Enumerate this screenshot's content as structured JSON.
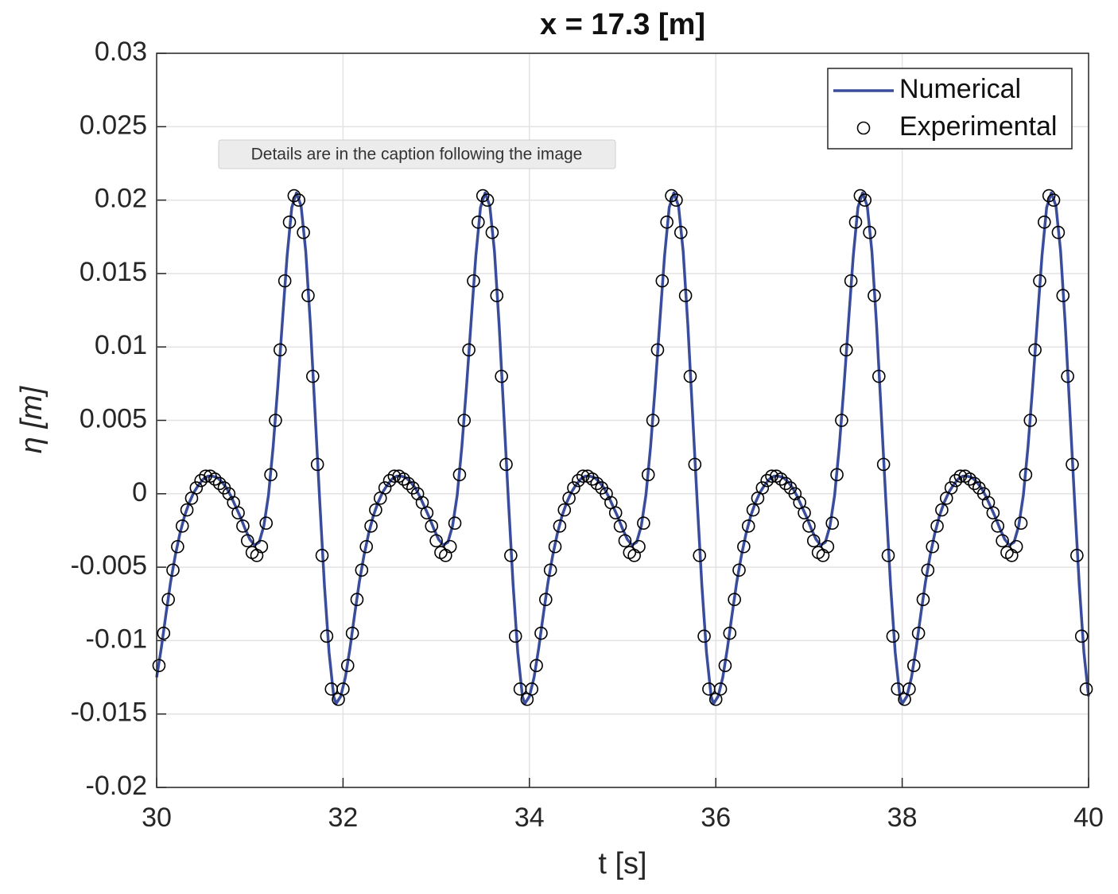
{
  "tooltip": "Details are in the caption following the image",
  "chart_data": {
    "type": "line",
    "title": "x = 17.3 [m]",
    "xlabel": "t [s]",
    "ylabel": "η [m]",
    "xlim": [
      30,
      40
    ],
    "xticks": [
      30,
      32,
      34,
      36,
      38,
      40
    ],
    "ylim": [
      -0.02,
      0.03
    ],
    "yticks": [
      -0.02,
      -0.015,
      -0.01,
      -0.005,
      0,
      0.005,
      0.01,
      0.015,
      0.02,
      0.025,
      0.03
    ],
    "grid": true,
    "legend": "upper right",
    "series": [
      {
        "name": "Numerical",
        "mode": "lines",
        "color": "#3a4d9c",
        "x": [
          30,
          30.05,
          30.1,
          30.15,
          30.2,
          30.25,
          30.3,
          30.35,
          30.4,
          30.45,
          30.5,
          30.55,
          30.6,
          30.65,
          30.7,
          30.75,
          30.8,
          30.85,
          30.9,
          30.95,
          31,
          31.05,
          31.1,
          31.15,
          31.2,
          31.25,
          31.3,
          31.35,
          31.4,
          31.45,
          31.5,
          31.55,
          31.6,
          31.65,
          31.7,
          31.75,
          31.8,
          31.85,
          31.9,
          31.925,
          31.975,
          32.025,
          32.075,
          32.125,
          32.175,
          32.225,
          32.275,
          32.325,
          32.375,
          32.425,
          32.475,
          32.525,
          32.575,
          32.625,
          32.675,
          32.725,
          32.775,
          32.825,
          32.875,
          32.925,
          32.975,
          33.025,
          33.075,
          33.125,
          33.175,
          33.225,
          33.275,
          33.325,
          33.375,
          33.425,
          33.475,
          33.525,
          33.575,
          33.625,
          33.675,
          33.725,
          33.775,
          33.825,
          33.875,
          33.925,
          33.95,
          34,
          34.05,
          34.1,
          34.15,
          34.2,
          34.25,
          34.3,
          34.35,
          34.4,
          34.45,
          34.5,
          34.55,
          34.6,
          34.65,
          34.7,
          34.75,
          34.8,
          34.85,
          34.9,
          34.95,
          35,
          35.05,
          35.1,
          35.15,
          35.2,
          35.25,
          35.3,
          35.35,
          35.4,
          35.45,
          35.5,
          35.55,
          35.6,
          35.65,
          35.7,
          35.75,
          35.8,
          35.85,
          35.9,
          35.95,
          35.975,
          36.025,
          36.075,
          36.125,
          36.175,
          36.225,
          36.275,
          36.325,
          36.375,
          36.425,
          36.475,
          36.525,
          36.575,
          36.625,
          36.675,
          36.725,
          36.775,
          36.825,
          36.875,
          36.925,
          36.975,
          37.025,
          37.075,
          37.125,
          37.175,
          37.225,
          37.275,
          37.325,
          37.375,
          37.425,
          37.475,
          37.525,
          37.575,
          37.625,
          37.675,
          37.725,
          37.775,
          37.825,
          37.875,
          37.925,
          37.975,
          38,
          38.05,
          38.1,
          38.15,
          38.2,
          38.25,
          38.3,
          38.35,
          38.4,
          38.45,
          38.5,
          38.55,
          38.6,
          38.65,
          38.7,
          38.75,
          38.8,
          38.85,
          38.9,
          38.95,
          39,
          39.05,
          39.1,
          39.15,
          39.2,
          39.25,
          39.3,
          39.35,
          39.4,
          39.45,
          39.5,
          39.55,
          39.6,
          39.65,
          39.7,
          39.75,
          39.8,
          39.85,
          39.9,
          39.95,
          40
        ],
        "values": [
          -0.0125,
          -0.0105,
          -0.0082,
          -0.006,
          -0.0042,
          -0.0027,
          -0.0015,
          -0.0006,
          0.0001,
          0.0006,
          0.001,
          0.0012,
          0.0012,
          0.0011,
          0.0008,
          0.0004,
          -0.0002,
          -0.0009,
          -0.0016,
          -0.0024,
          -0.0031,
          -0.0035,
          -0.0033,
          -0.0022,
          -0.0001,
          0.0032,
          0.0073,
          0.0118,
          0.0162,
          0.0195,
          0.0205,
          0.0196,
          0.0165,
          0.0115,
          0.0055,
          -0.0005,
          -0.0062,
          -0.0108,
          -0.0138,
          -0.0143,
          -0.0138,
          -0.0125,
          -0.0105,
          -0.0082,
          -0.006,
          -0.0042,
          -0.0027,
          -0.0015,
          -0.0006,
          0.0001,
          0.0006,
          0.001,
          0.0012,
          0.0012,
          0.0011,
          0.0008,
          0.0004,
          -0.0002,
          -0.0009,
          -0.0016,
          -0.0024,
          -0.0031,
          -0.0035,
          -0.0033,
          -0.0022,
          -0.0001,
          0.0032,
          0.0073,
          0.0118,
          0.0162,
          0.0195,
          0.0205,
          0.0196,
          0.0165,
          0.0115,
          0.0055,
          -0.0005,
          -0.0062,
          -0.0108,
          -0.0138,
          -0.0143,
          -0.0138,
          -0.0125,
          -0.0105,
          -0.0082,
          -0.006,
          -0.0042,
          -0.0027,
          -0.0015,
          -0.0006,
          0.0001,
          0.0006,
          0.001,
          0.0012,
          0.0012,
          0.0011,
          0.0008,
          0.0004,
          -0.0002,
          -0.0009,
          -0.0016,
          -0.0024,
          -0.0031,
          -0.0035,
          -0.0033,
          -0.0022,
          -0.0001,
          0.0032,
          0.0073,
          0.0118,
          0.0162,
          0.0195,
          0.0205,
          0.0196,
          0.0165,
          0.0115,
          0.0055,
          -0.0005,
          -0.0062,
          -0.0108,
          -0.0138,
          -0.0143,
          -0.0138,
          -0.0125,
          -0.0105,
          -0.0082,
          -0.006,
          -0.0042,
          -0.0027,
          -0.0015,
          -0.0006,
          0.0001,
          0.0006,
          0.001,
          0.0012,
          0.0012,
          0.0011,
          0.0008,
          0.0004,
          -0.0002,
          -0.0009,
          -0.0016,
          -0.0024,
          -0.0031,
          -0.0035,
          -0.0033,
          -0.0022,
          -0.0001,
          0.0032,
          0.0073,
          0.0118,
          0.0162,
          0.0195,
          0.0205,
          0.0196,
          0.0165,
          0.0115,
          0.0055,
          -0.0005,
          -0.0062,
          -0.0108,
          -0.0138,
          -0.0143,
          -0.0138,
          -0.0125,
          -0.0105,
          -0.0082,
          -0.006,
          -0.0042,
          -0.0027,
          -0.0015,
          -0.0006,
          0.0001,
          0.0006,
          0.001,
          0.0012,
          0.0012,
          0.0011,
          0.0008,
          0.0004,
          -0.0002,
          -0.0009,
          -0.0016,
          -0.0024,
          -0.0031,
          -0.0035,
          -0.0033,
          -0.0022,
          -0.0001,
          0.0032,
          0.0073,
          0.0118,
          0.0162,
          0.0195,
          0.0205,
          0.0196,
          0.0165,
          0.0115,
          0.0055,
          -0.0005,
          -0.0062,
          -0.0108,
          -0.0138
        ]
      },
      {
        "name": "Experimental",
        "mode": "markers",
        "color": "#000000",
        "x": [
          30.025,
          30.075,
          30.125,
          30.175,
          30.225,
          30.275,
          30.325,
          30.375,
          30.425,
          30.475,
          30.525,
          30.575,
          30.625,
          30.675,
          30.725,
          30.775,
          30.825,
          30.875,
          30.925,
          30.975,
          31.025,
          31.075,
          31.125,
          31.175,
          31.225,
          31.275,
          31.325,
          31.375,
          31.425,
          31.475,
          31.525,
          31.575,
          31.625,
          31.675,
          31.725,
          31.775,
          31.825,
          31.875,
          31.95,
          32,
          32.05,
          32.1,
          32.15,
          32.2,
          32.25,
          32.3,
          32.35,
          32.4,
          32.45,
          32.5,
          32.55,
          32.6,
          32.65,
          32.7,
          32.75,
          32.8,
          32.85,
          32.9,
          32.95,
          33,
          33.05,
          33.1,
          33.15,
          33.2,
          33.25,
          33.3,
          33.35,
          33.4,
          33.45,
          33.5,
          33.55,
          33.6,
          33.65,
          33.7,
          33.75,
          33.8,
          33.85,
          33.9,
          33.975,
          34.025,
          34.075,
          34.125,
          34.175,
          34.225,
          34.275,
          34.325,
          34.375,
          34.425,
          34.475,
          34.525,
          34.575,
          34.625,
          34.675,
          34.725,
          34.775,
          34.825,
          34.875,
          34.925,
          34.975,
          35.025,
          35.075,
          35.125,
          35.175,
          35.225,
          35.275,
          35.325,
          35.375,
          35.425,
          35.475,
          35.525,
          35.575,
          35.625,
          35.675,
          35.725,
          35.775,
          35.825,
          35.875,
          35.925,
          36,
          36.05,
          36.1,
          36.15,
          36.2,
          36.25,
          36.3,
          36.35,
          36.4,
          36.45,
          36.5,
          36.55,
          36.6,
          36.65,
          36.7,
          36.75,
          36.8,
          36.85,
          36.9,
          36.95,
          37,
          37.05,
          37.1,
          37.15,
          37.2,
          37.25,
          37.3,
          37.35,
          37.4,
          37.45,
          37.5,
          37.55,
          37.6,
          37.65,
          37.7,
          37.75,
          37.8,
          37.85,
          37.9,
          37.95,
          38.025,
          38.075,
          38.125,
          38.175,
          38.225,
          38.275,
          38.325,
          38.375,
          38.425,
          38.475,
          38.525,
          38.575,
          38.625,
          38.675,
          38.725,
          38.775,
          38.825,
          38.875,
          38.925,
          38.975,
          39.025,
          39.075,
          39.125,
          39.175,
          39.225,
          39.275,
          39.325,
          39.375,
          39.425,
          39.475,
          39.525,
          39.575,
          39.625,
          39.675,
          39.725,
          39.775,
          39.825,
          39.875,
          39.925,
          39.975
        ],
        "values": [
          -0.0117,
          -0.0095,
          -0.0072,
          -0.0052,
          -0.0036,
          -0.0022,
          -0.0011,
          -0.0003,
          0.0004,
          0.0009,
          0.0012,
          0.0012,
          0.001,
          0.0007,
          0.0004,
          0,
          -0.0006,
          -0.0013,
          -0.0022,
          -0.0032,
          -0.004,
          -0.0042,
          -0.0036,
          -0.002,
          0.0013,
          0.005,
          0.0098,
          0.0145,
          0.0185,
          0.0203,
          0.02,
          0.0178,
          0.0135,
          0.008,
          0.002,
          -0.0042,
          -0.0097,
          -0.0133,
          -0.014,
          -0.0133,
          -0.0117,
          -0.0095,
          -0.0072,
          -0.0052,
          -0.0036,
          -0.0022,
          -0.0011,
          -0.0003,
          0.0004,
          0.0009,
          0.0012,
          0.0012,
          0.001,
          0.0007,
          0.0004,
          0,
          -0.0006,
          -0.0013,
          -0.0022,
          -0.0032,
          -0.004,
          -0.0042,
          -0.0036,
          -0.002,
          0.0013,
          0.005,
          0.0098,
          0.0145,
          0.0185,
          0.0203,
          0.02,
          0.0178,
          0.0135,
          0.008,
          0.002,
          -0.0042,
          -0.0097,
          -0.0133,
          -0.014,
          -0.0133,
          -0.0117,
          -0.0095,
          -0.0072,
          -0.0052,
          -0.0036,
          -0.0022,
          -0.0011,
          -0.0003,
          0.0004,
          0.0009,
          0.0012,
          0.0012,
          0.001,
          0.0007,
          0.0004,
          0,
          -0.0006,
          -0.0013,
          -0.0022,
          -0.0032,
          -0.004,
          -0.0042,
          -0.0036,
          -0.002,
          0.0013,
          0.005,
          0.0098,
          0.0145,
          0.0185,
          0.0203,
          0.02,
          0.0178,
          0.0135,
          0.008,
          0.002,
          -0.0042,
          -0.0097,
          -0.0133,
          -0.014,
          -0.0133,
          -0.0117,
          -0.0095,
          -0.0072,
          -0.0052,
          -0.0036,
          -0.0022,
          -0.0011,
          -0.0003,
          0.0004,
          0.0009,
          0.0012,
          0.0012,
          0.001,
          0.0007,
          0.0004,
          0,
          -0.0006,
          -0.0013,
          -0.0022,
          -0.0032,
          -0.004,
          -0.0042,
          -0.0036,
          -0.002,
          0.0013,
          0.005,
          0.0098,
          0.0145,
          0.0185,
          0.0203,
          0.02,
          0.0178,
          0.0135,
          0.008,
          0.002,
          -0.0042,
          -0.0097,
          -0.0133,
          -0.014,
          -0.0133,
          -0.0117,
          -0.0095,
          -0.0072,
          -0.0052,
          -0.0036,
          -0.0022,
          -0.0011,
          -0.0003,
          0.0004,
          0.0009,
          0.0012,
          0.0012,
          0.001,
          0.0007,
          0.0004,
          0,
          -0.0006,
          -0.0013,
          -0.0022,
          -0.0032,
          -0.004,
          -0.0042,
          -0.0036,
          -0.002,
          0.0013,
          0.005,
          0.0098,
          0.0145,
          0.0185,
          0.0203,
          0.02,
          0.0178,
          0.0135,
          0.008,
          0.002,
          -0.0042,
          -0.0097,
          -0.0133
        ]
      }
    ]
  }
}
